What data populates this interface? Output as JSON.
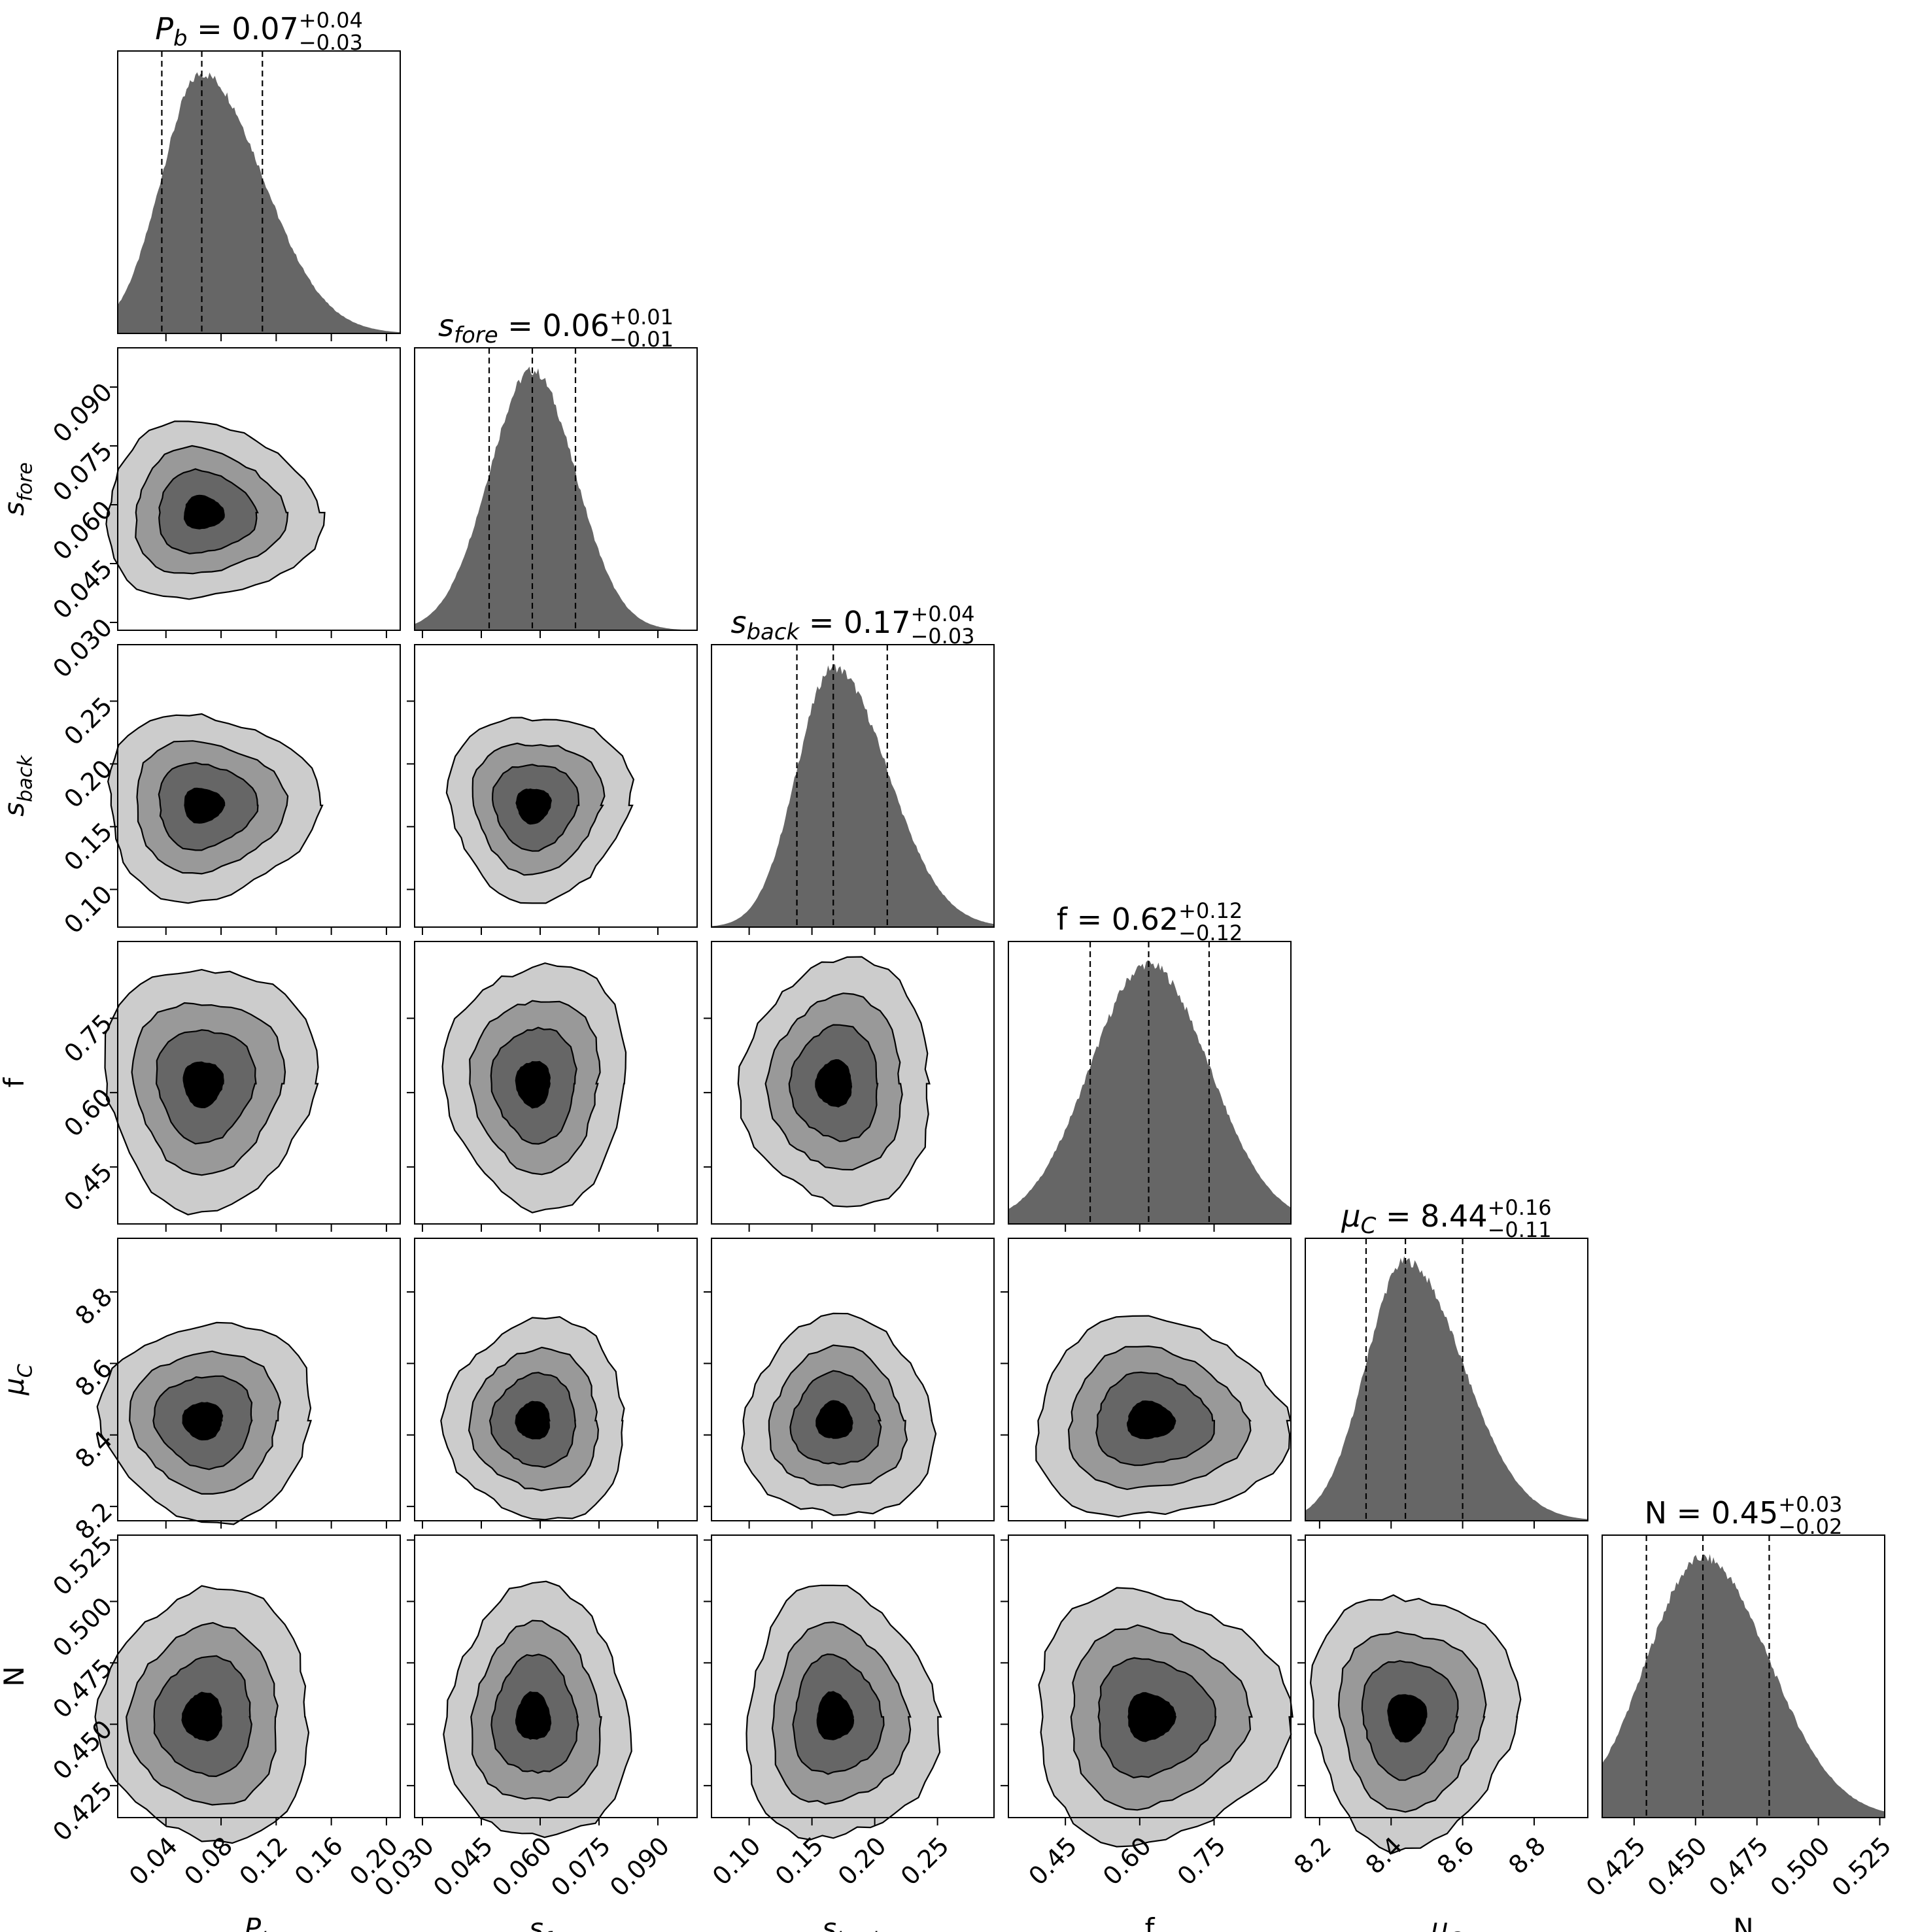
{
  "chart_data": {
    "type": "corner",
    "description_free": true,
    "parameters": [
      {
        "key": "Pb",
        "axis_label": "P",
        "axis_label_sub": "b",
        "title_name": "P",
        "title_sub": "b",
        "title_value": "0.07",
        "title_plus": "+0.04",
        "title_minus": "−0.03",
        "median": 0.066,
        "q16": 0.037,
        "q84": 0.11,
        "range": [
          0.005,
          0.21
        ],
        "ticks": [
          0.04,
          0.08,
          0.12,
          0.16,
          0.2
        ],
        "tick_labels": [
          "0.04",
          "0.08",
          "0.12",
          "0.16",
          "0.20"
        ],
        "hist_skew": 1.6,
        "hist_sigma": 0.025
      },
      {
        "key": "sfore",
        "axis_label": "s",
        "axis_label_sub": "fore",
        "title_name": "s",
        "title_sub": "fore",
        "title_value": "0.06",
        "title_plus": "+0.01",
        "title_minus": "−0.01",
        "median": 0.058,
        "q16": 0.047,
        "q84": 0.069,
        "range": [
          0.028,
          0.1
        ],
        "ticks": [
          0.03,
          0.045,
          0.06,
          0.075,
          0.09
        ],
        "tick_labels": [
          "0.030",
          "0.045",
          "0.060",
          "0.075",
          "0.090"
        ],
        "hist_skew": 1.0,
        "hist_sigma": 0.011
      },
      {
        "key": "sback",
        "axis_label": "s",
        "axis_label_sub": "back",
        "title_name": "s",
        "title_sub": "back",
        "title_value": "0.17",
        "title_plus": "+0.04",
        "title_minus": "−0.03",
        "median": 0.167,
        "q16": 0.138,
        "q84": 0.21,
        "range": [
          0.07,
          0.295
        ],
        "ticks": [
          0.1,
          0.15,
          0.2,
          0.25
        ],
        "tick_labels": [
          "0.10",
          "0.15",
          "0.20",
          "0.25"
        ],
        "hist_skew": 1.3,
        "hist_sigma": 0.032
      },
      {
        "key": "f",
        "axis_label": "f",
        "axis_label_sub": "",
        "title_name": "f",
        "title_sub": "",
        "title_value": "0.62",
        "title_plus": "+0.12",
        "title_minus": "−0.12",
        "median": 0.618,
        "q16": 0.5,
        "q84": 0.74,
        "range": [
          0.335,
          0.905
        ],
        "ticks": [
          0.45,
          0.6,
          0.75
        ],
        "tick_labels": [
          "0.45",
          "0.60",
          "0.75"
        ],
        "hist_skew": 1.0,
        "hist_sigma": 0.12
      },
      {
        "key": "muC",
        "axis_label": "μ",
        "axis_label_sub": "C",
        "title_name": "μ",
        "title_sub": "C",
        "title_value": "8.44",
        "title_plus": "+0.16",
        "title_minus": "−0.11",
        "median": 8.44,
        "q16": 8.33,
        "q84": 8.6,
        "range": [
          8.16,
          8.95
        ],
        "ticks": [
          8.2,
          8.4,
          8.6,
          8.8
        ],
        "tick_labels": [
          "8.2",
          "8.4",
          "8.6",
          "8.8"
        ],
        "hist_skew": 1.9,
        "hist_sigma": 0.085
      },
      {
        "key": "N",
        "axis_label": "N",
        "axis_label_sub": "",
        "title_name": "N",
        "title_sub": "",
        "title_value": "0.45",
        "title_plus": "+0.03",
        "title_minus": "−0.02",
        "median": 0.453,
        "q16": 0.43,
        "q84": 0.48,
        "range": [
          0.412,
          0.527
        ],
        "ticks": [
          0.425,
          0.45,
          0.475,
          0.5,
          0.525
        ],
        "tick_labels": [
          "0.425",
          "0.450",
          "0.475",
          "0.500",
          "0.525"
        ],
        "hist_skew": 1.2,
        "hist_sigma": 0.021
      }
    ],
    "contour_levels": 4,
    "contour_colors": [
      "#cccccc",
      "#999999",
      "#666666",
      "#000000"
    ],
    "hist_color": "#666666",
    "quantile_line_style": "dashed"
  }
}
